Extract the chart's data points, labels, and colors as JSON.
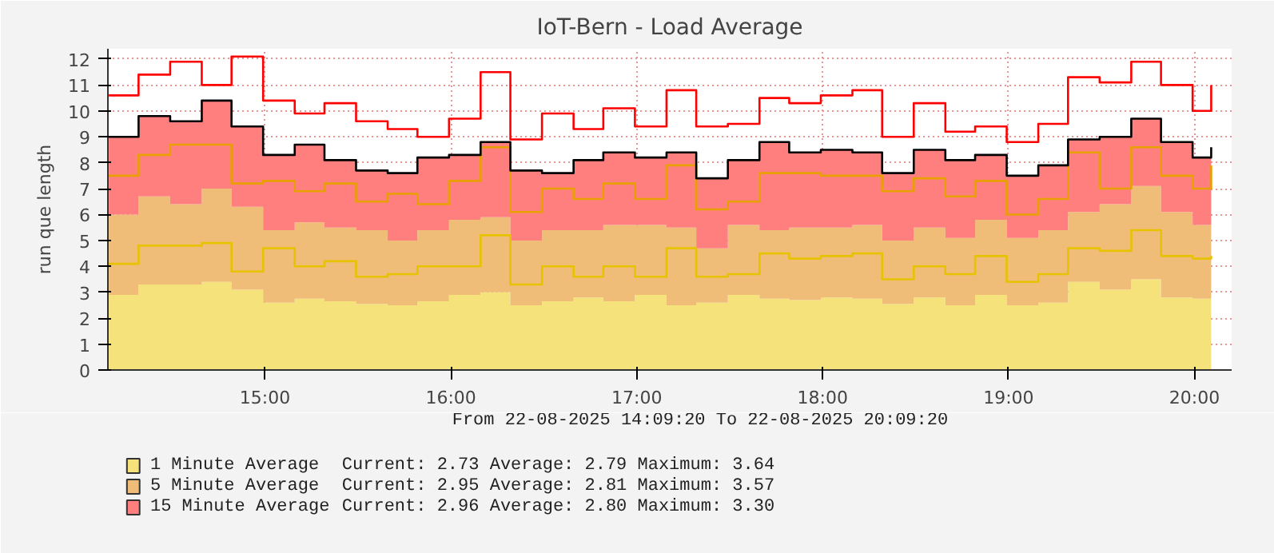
{
  "chart_data": {
    "type": "area",
    "stacked": true,
    "title": "IoT-Bern - Load Average",
    "ylabel": "run que length",
    "x": [
      14.16,
      14.32,
      14.49,
      14.66,
      14.82,
      14.99,
      15.16,
      15.32,
      15.49,
      15.66,
      15.82,
      15.99,
      16.16,
      16.32,
      16.49,
      16.66,
      16.82,
      16.99,
      17.16,
      17.32,
      17.49,
      17.66,
      17.82,
      17.99,
      18.16,
      18.32,
      18.49,
      18.66,
      18.82,
      18.99,
      19.16,
      19.32,
      19.49,
      19.66,
      19.82,
      19.99,
      20.09
    ],
    "xlim": [
      14.155,
      20.2
    ],
    "xticks": [
      {
        "value": 15,
        "label": "15:00"
      },
      {
        "value": 16,
        "label": "16:00"
      },
      {
        "value": 17,
        "label": "17:00"
      },
      {
        "value": 18,
        "label": "18:00"
      },
      {
        "value": 19,
        "label": "19:00"
      },
      {
        "value": 20,
        "label": "20:00"
      }
    ],
    "ylim": [
      0,
      12.4
    ],
    "yticks": [
      0,
      1,
      2,
      3,
      4,
      5,
      6,
      7,
      8,
      9,
      10,
      11,
      12
    ],
    "grid": true,
    "legend": "bottom",
    "series": [
      {
        "name": "1 Minute Average",
        "color": "#f5e27a",
        "values": [
          2.9,
          3.3,
          3.3,
          3.4,
          3.1,
          2.6,
          2.75,
          2.65,
          2.55,
          2.5,
          2.65,
          2.9,
          3.0,
          2.5,
          2.65,
          2.8,
          2.65,
          2.9,
          2.5,
          2.6,
          2.9,
          2.75,
          2.7,
          2.8,
          2.75,
          2.55,
          2.8,
          2.5,
          2.9,
          2.5,
          2.6,
          3.4,
          3.1,
          3.5,
          2.8,
          2.75,
          2.75
        ]
      },
      {
        "name": "5 Minute Average",
        "color": "#f0bd78",
        "values": [
          3.1,
          3.4,
          3.1,
          3.6,
          3.2,
          2.8,
          2.95,
          2.85,
          2.85,
          2.5,
          2.75,
          2.9,
          2.9,
          2.5,
          2.75,
          2.6,
          2.95,
          2.7,
          3.0,
          2.1,
          2.7,
          2.65,
          2.8,
          2.7,
          2.85,
          2.45,
          2.7,
          2.6,
          2.9,
          2.6,
          2.8,
          2.7,
          3.3,
          3.6,
          3.3,
          2.85,
          2.85
        ]
      },
      {
        "name": "15 Minute Average",
        "color": "#ff7f7f",
        "values": [
          3.0,
          3.1,
          3.2,
          3.4,
          3.1,
          2.9,
          3.0,
          2.6,
          2.3,
          2.6,
          2.8,
          2.5,
          2.9,
          2.7,
          2.2,
          2.7,
          2.8,
          2.6,
          2.9,
          2.7,
          2.5,
          3.4,
          2.9,
          3.0,
          2.8,
          2.6,
          3.0,
          3.0,
          2.5,
          2.4,
          2.5,
          2.8,
          2.6,
          2.6,
          2.7,
          2.6,
          3.0
        ]
      },
      {
        "type": "step",
        "color": "#e6c200",
        "values": [
          4.1,
          4.8,
          4.8,
          4.9,
          3.8,
          4.7,
          4.0,
          4.2,
          3.6,
          3.7,
          4.0,
          4.0,
          5.2,
          3.3,
          4.0,
          3.6,
          4.0,
          3.6,
          4.7,
          3.6,
          3.7,
          4.5,
          4.3,
          4.4,
          4.5,
          3.5,
          4.0,
          3.7,
          4.4,
          3.4,
          3.7,
          4.7,
          4.6,
          5.4,
          4.4,
          4.3,
          4.4
        ]
      },
      {
        "type": "step",
        "color": "#e8a000",
        "values": [
          7.5,
          8.3,
          8.7,
          8.7,
          7.2,
          7.3,
          6.9,
          7.2,
          6.5,
          6.8,
          6.4,
          7.3,
          8.6,
          6.1,
          7.0,
          6.6,
          7.2,
          6.6,
          7.9,
          6.2,
          6.5,
          7.6,
          7.6,
          7.5,
          7.5,
          6.9,
          7.4,
          6.7,
          7.3,
          6.0,
          6.6,
          8.4,
          7.0,
          8.6,
          7.5,
          7.0,
          7.9
        ]
      },
      {
        "type": "step",
        "color": "#000000",
        "values": [
          9.0,
          9.8,
          9.6,
          10.4,
          9.4,
          8.3,
          8.7,
          8.1,
          7.7,
          7.6,
          8.2,
          8.3,
          8.8,
          7.7,
          7.6,
          8.1,
          8.4,
          8.2,
          8.4,
          7.4,
          8.1,
          8.8,
          8.4,
          8.5,
          8.4,
          7.6,
          8.5,
          8.1,
          8.3,
          7.5,
          7.9,
          8.9,
          9.0,
          9.7,
          8.8,
          8.2,
          8.6
        ]
      },
      {
        "type": "step",
        "color": "#ff0000",
        "values": [
          10.6,
          11.4,
          11.9,
          11.0,
          12.1,
          10.4,
          9.9,
          10.3,
          9.6,
          9.3,
          9.0,
          9.7,
          11.5,
          8.9,
          9.9,
          9.3,
          10.1,
          9.4,
          10.8,
          9.4,
          9.5,
          10.5,
          10.3,
          10.6,
          10.8,
          9.0,
          10.3,
          9.2,
          9.4,
          8.8,
          9.5,
          11.3,
          11.1,
          11.9,
          11.0,
          10.0,
          11.0
        ]
      }
    ],
    "annotations": [
      "From 22-08-2025 14:09:20 To 22-08-2025 20:09:20",
      "Current:    2.73   Average:    2.79   Maximum:    3.64",
      "Current:    2.95   Average:    2.81   Maximum:    3.57",
      "Current:    2.96   Average:    2.80   Maximum:    3.30"
    ]
  }
}
